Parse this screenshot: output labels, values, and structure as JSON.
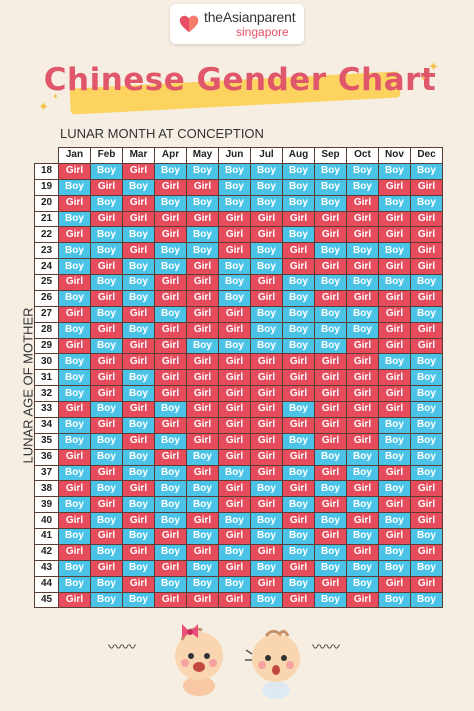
{
  "logo": {
    "brand": "theAsianparent",
    "region": "singapore"
  },
  "title": "Chinese Gender Chart",
  "month_axis_label": "LUNAR MONTH AT CONCEPTION",
  "age_axis_label": "LUNAR AGE OF MOTHER",
  "colors": {
    "girl": "#e74c5c",
    "boy": "#4bc3e6",
    "title": "#e0576b",
    "highlight": "#fbd35e",
    "background": "#f6eee2"
  },
  "months": [
    "Jan",
    "Feb",
    "Mar",
    "Apr",
    "May",
    "Jun",
    "Jul",
    "Aug",
    "Sep",
    "Oct",
    "Nov",
    "Dec"
  ],
  "rows": [
    {
      "age": "18",
      "cells": [
        "Girl",
        "Boy",
        "Girl",
        "Boy",
        "Boy",
        "Boy",
        "Boy",
        "Boy",
        "Boy",
        "Boy",
        "Boy",
        "Boy"
      ]
    },
    {
      "age": "19",
      "cells": [
        "Boy",
        "Girl",
        "Boy",
        "Girl",
        "Girl",
        "Boy",
        "Boy",
        "Boy",
        "Boy",
        "Boy",
        "Girl",
        "Girl"
      ]
    },
    {
      "age": "20",
      "cells": [
        "Girl",
        "Boy",
        "Girl",
        "Boy",
        "Boy",
        "Boy",
        "Boy",
        "Boy",
        "Boy",
        "Girl",
        "Boy",
        "Boy"
      ]
    },
    {
      "age": "21",
      "cells": [
        "Boy",
        "Girl",
        "Girl",
        "Girl",
        "Girl",
        "Girl",
        "Girl",
        "Girl",
        "Girl",
        "Girl",
        "Girl",
        "Girl"
      ]
    },
    {
      "age": "22",
      "cells": [
        "Girl",
        "Boy",
        "Boy",
        "Girl",
        "Boy",
        "Girl",
        "Girl",
        "Boy",
        "Girl",
        "Girl",
        "Girl",
        "Girl"
      ]
    },
    {
      "age": "23",
      "cells": [
        "Boy",
        "Boy",
        "Girl",
        "Boy",
        "Boy",
        "Girl",
        "Boy",
        "Girl",
        "Boy",
        "Boy",
        "Boy",
        "Girl"
      ]
    },
    {
      "age": "24",
      "cells": [
        "Boy",
        "Girl",
        "Boy",
        "Boy",
        "Girl",
        "Boy",
        "Boy",
        "Girl",
        "Girl",
        "Girl",
        "Girl",
        "Girl"
      ]
    },
    {
      "age": "25",
      "cells": [
        "Girl",
        "Boy",
        "Boy",
        "Girl",
        "Girl",
        "Boy",
        "Girl",
        "Boy",
        "Boy",
        "Boy",
        "Boy",
        "Boy"
      ]
    },
    {
      "age": "26",
      "cells": [
        "Boy",
        "Girl",
        "Boy",
        "Girl",
        "Girl",
        "Boy",
        "Girl",
        "Boy",
        "Girl",
        "Girl",
        "Girl",
        "Girl"
      ]
    },
    {
      "age": "27",
      "cells": [
        "Girl",
        "Boy",
        "Girl",
        "Boy",
        "Girl",
        "Girl",
        "Boy",
        "Boy",
        "Boy",
        "Boy",
        "Girl",
        "Boy"
      ]
    },
    {
      "age": "28",
      "cells": [
        "Boy",
        "Girl",
        "Boy",
        "Girl",
        "Girl",
        "Girl",
        "Boy",
        "Boy",
        "Boy",
        "Boy",
        "Girl",
        "Girl"
      ]
    },
    {
      "age": "29",
      "cells": [
        "Girl",
        "Boy",
        "Girl",
        "Girl",
        "Boy",
        "Boy",
        "Boy",
        "Boy",
        "Boy",
        "Girl",
        "Girl",
        "Girl"
      ]
    },
    {
      "age": "30",
      "cells": [
        "Boy",
        "Girl",
        "Girl",
        "Girl",
        "Girl",
        "Girl",
        "Girl",
        "Girl",
        "Girl",
        "Girl",
        "Boy",
        "Boy"
      ]
    },
    {
      "age": "31",
      "cells": [
        "Boy",
        "Girl",
        "Boy",
        "Girl",
        "Girl",
        "Girl",
        "Girl",
        "Girl",
        "Girl",
        "Girl",
        "Girl",
        "Boy"
      ]
    },
    {
      "age": "32",
      "cells": [
        "Boy",
        "Girl",
        "Boy",
        "Girl",
        "Girl",
        "Girl",
        "Girl",
        "Girl",
        "Girl",
        "Girl",
        "Girl",
        "Boy"
      ]
    },
    {
      "age": "33",
      "cells": [
        "Girl",
        "Boy",
        "Girl",
        "Boy",
        "Girl",
        "Girl",
        "Girl",
        "Boy",
        "Girl",
        "Girl",
        "Girl",
        "Boy"
      ]
    },
    {
      "age": "34",
      "cells": [
        "Boy",
        "Girl",
        "Boy",
        "Girl",
        "Girl",
        "Girl",
        "Girl",
        "Girl",
        "Girl",
        "Girl",
        "Boy",
        "Boy"
      ]
    },
    {
      "age": "35",
      "cells": [
        "Boy",
        "Boy",
        "Girl",
        "Boy",
        "Girl",
        "Girl",
        "Girl",
        "Boy",
        "Girl",
        "Girl",
        "Boy",
        "Boy"
      ]
    },
    {
      "age": "36",
      "cells": [
        "Girl",
        "Boy",
        "Boy",
        "Girl",
        "Boy",
        "Girl",
        "Girl",
        "Girl",
        "Boy",
        "Boy",
        "Boy",
        "Boy"
      ]
    },
    {
      "age": "37",
      "cells": [
        "Boy",
        "Girl",
        "Boy",
        "Boy",
        "Girl",
        "Boy",
        "Girl",
        "Boy",
        "Girl",
        "Boy",
        "Girl",
        "Boy"
      ]
    },
    {
      "age": "38",
      "cells": [
        "Girl",
        "Boy",
        "Girl",
        "Boy",
        "Boy",
        "Girl",
        "Boy",
        "Girl",
        "Boy",
        "Girl",
        "Boy",
        "Girl"
      ]
    },
    {
      "age": "39",
      "cells": [
        "Boy",
        "Girl",
        "Boy",
        "Boy",
        "Boy",
        "Girl",
        "Girl",
        "Boy",
        "Girl",
        "Boy",
        "Girl",
        "Girl"
      ]
    },
    {
      "age": "40",
      "cells": [
        "Girl",
        "Boy",
        "Girl",
        "Boy",
        "Girl",
        "Boy",
        "Boy",
        "Girl",
        "Boy",
        "Girl",
        "Boy",
        "Girl"
      ]
    },
    {
      "age": "41",
      "cells": [
        "Boy",
        "Girl",
        "Boy",
        "Girl",
        "Boy",
        "Girl",
        "Boy",
        "Boy",
        "Girl",
        "Boy",
        "Girl",
        "Boy"
      ]
    },
    {
      "age": "42",
      "cells": [
        "Girl",
        "Boy",
        "Girl",
        "Boy",
        "Girl",
        "Boy",
        "Girl",
        "Boy",
        "Boy",
        "Girl",
        "Boy",
        "Girl"
      ]
    },
    {
      "age": "43",
      "cells": [
        "Boy",
        "Girl",
        "Boy",
        "Girl",
        "Boy",
        "Girl",
        "Boy",
        "Girl",
        "Boy",
        "Boy",
        "Boy",
        "Boy"
      ]
    },
    {
      "age": "44",
      "cells": [
        "Boy",
        "Boy",
        "Girl",
        "Boy",
        "Boy",
        "Boy",
        "Girl",
        "Boy",
        "Girl",
        "Boy",
        "Girl",
        "Girl"
      ]
    },
    {
      "age": "45",
      "cells": [
        "Girl",
        "Boy",
        "Boy",
        "Girl",
        "Girl",
        "Girl",
        "Boy",
        "Girl",
        "Boy",
        "Girl",
        "Boy",
        "Boy"
      ]
    }
  ]
}
